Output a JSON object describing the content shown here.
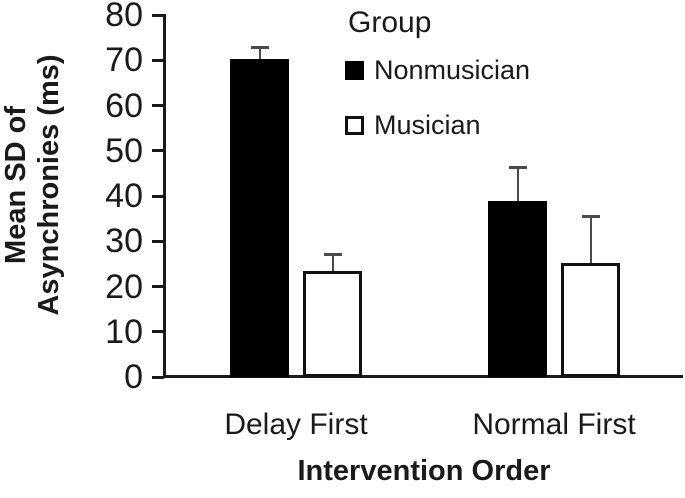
{
  "chart_data": {
    "type": "bar",
    "title": "",
    "categories": [
      "Delay First",
      "Normal First"
    ],
    "series": [
      {
        "name": "Nonmusician",
        "fill": "#000000",
        "outlined": false,
        "values": [
          70.3,
          39.0
        ],
        "errors_up": [
          2.5,
          7.3
        ]
      },
      {
        "name": "Musician",
        "fill": "#ffffff",
        "outlined": true,
        "values": [
          23.5,
          25.2
        ],
        "errors_up": [
          3.5,
          10.2
        ]
      }
    ],
    "xlabel": "Intervention Order",
    "ylabel_line1": "Mean SD of",
    "ylabel_line2": "Asynchronies (ms)",
    "ylim": [
      0,
      80
    ],
    "yticks": [
      0,
      10,
      20,
      30,
      40,
      50,
      60,
      70,
      80
    ],
    "legend_title": "Group",
    "legend_position": "top-center-inside",
    "grid": false
  },
  "colors": {
    "background": "#ffffff",
    "axis": "#1a1a1a",
    "text": "#1a1a1a",
    "error_bar": "#4a4a4a",
    "bar_border": "#111111"
  }
}
